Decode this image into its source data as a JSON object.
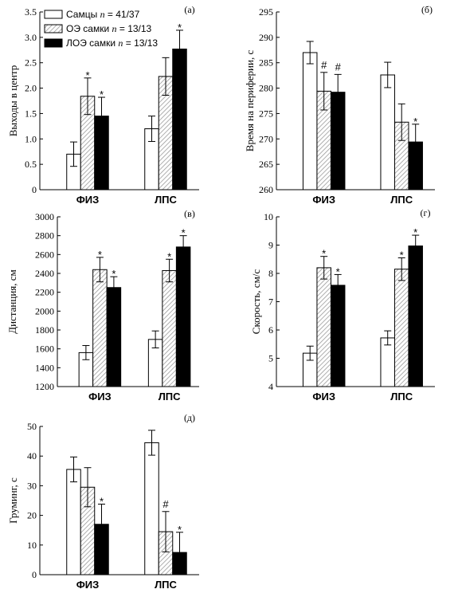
{
  "legend": {
    "items": [
      {
        "label": "Самцы",
        "n_text": "n",
        "n_value": " = 41/37",
        "fill": "white"
      },
      {
        "label": "ОЭ самки",
        "n_text": "n",
        "n_value": " = 13/13",
        "fill": "hatch"
      },
      {
        "label": "ЛОЭ самки",
        "n_text": "n",
        "n_value": " = 13/13",
        "fill": "black"
      }
    ]
  },
  "colors": {
    "bar_outline": "#000000",
    "hatch": "#9a9a9a",
    "solid": "#000000"
  },
  "chart_data": [
    {
      "type": "bar",
      "panel": "(а)",
      "ylabel": "Выходы в центр",
      "categories": [
        "ФИЗ",
        "ЛПС"
      ],
      "ylim": [
        0,
        3.5
      ],
      "yticks": [
        "0",
        "0.5",
        "1.0",
        "1.5",
        "2.0",
        "2.5",
        "3.0",
        "3.5"
      ],
      "ytick_values": [
        0,
        0.5,
        1,
        1.5,
        2,
        2.5,
        3,
        3.5
      ],
      "series": [
        {
          "values": [
            0.7,
            1.2
          ],
          "errors": [
            0.24,
            0.25
          ],
          "marks": [
            "",
            ""
          ]
        },
        {
          "values": [
            1.84,
            2.23
          ],
          "errors": [
            0.36,
            0.37
          ],
          "marks": [
            "*",
            ""
          ]
        },
        {
          "values": [
            1.45,
            2.77
          ],
          "errors": [
            0.37,
            0.37
          ],
          "marks": [
            "*",
            "*"
          ]
        }
      ]
    },
    {
      "type": "bar",
      "panel": "(б)",
      "ylabel": "Время на периферии, с",
      "categories": [
        "ФИЗ",
        "ЛПС"
      ],
      "ylim": [
        260,
        295
      ],
      "yticks": [
        "260",
        "265",
        "270",
        "275",
        "280",
        "285",
        "290",
        "295"
      ],
      "ytick_values": [
        260,
        265,
        270,
        275,
        280,
        285,
        290,
        295
      ],
      "series": [
        {
          "values": [
            287,
            282.6
          ],
          "errors": [
            2.2,
            2.5
          ],
          "marks": [
            "",
            ""
          ]
        },
        {
          "values": [
            279.4,
            273.3
          ],
          "errors": [
            3.7,
            3.6
          ],
          "marks": [
            "#",
            ""
          ]
        },
        {
          "values": [
            279.2,
            269.4
          ],
          "errors": [
            3.5,
            3.5
          ],
          "marks": [
            "#",
            "*"
          ]
        }
      ]
    },
    {
      "type": "bar",
      "panel": "(в)",
      "ylabel": "Дистанция, см",
      "categories": [
        "ФИЗ",
        "ЛПС"
      ],
      "ylim": [
        1200,
        3000
      ],
      "yticks": [
        "1200",
        "1400",
        "1600",
        "1800",
        "2000",
        "2200",
        "2400",
        "2600",
        "2800",
        "3000"
      ],
      "ytick_values": [
        1200,
        1400,
        1600,
        1800,
        2000,
        2200,
        2400,
        2600,
        2800,
        3000
      ],
      "series": [
        {
          "values": [
            1560,
            1700
          ],
          "errors": [
            75,
            90
          ],
          "marks": [
            "",
            ""
          ]
        },
        {
          "values": [
            2440,
            2430
          ],
          "errors": [
            130,
            120
          ],
          "marks": [
            "*",
            "*"
          ]
        },
        {
          "values": [
            2250,
            2680
          ],
          "errors": [
            115,
            120
          ],
          "marks": [
            "*",
            "*"
          ]
        }
      ]
    },
    {
      "type": "bar",
      "panel": "(г)",
      "ylabel": "Скорость, см/с",
      "categories": [
        "ФИЗ",
        "ЛПС"
      ],
      "ylim": [
        4,
        10
      ],
      "yticks": [
        "4",
        "5",
        "6",
        "7",
        "8",
        "9",
        "10"
      ],
      "ytick_values": [
        4,
        5,
        6,
        7,
        8,
        9,
        10
      ],
      "series": [
        {
          "values": [
            5.18,
            5.72
          ],
          "errors": [
            0.25,
            0.25
          ],
          "marks": [
            "",
            ""
          ]
        },
        {
          "values": [
            8.2,
            8.15
          ],
          "errors": [
            0.4,
            0.4
          ],
          "marks": [
            "*",
            "*"
          ]
        },
        {
          "values": [
            7.58,
            8.97
          ],
          "errors": [
            0.38,
            0.38
          ],
          "marks": [
            "*",
            "*"
          ]
        }
      ]
    },
    {
      "type": "bar",
      "panel": "(д)",
      "ylabel": "Груминг, с",
      "categories": [
        "ФИЗ",
        "ЛПС"
      ],
      "ylim": [
        0,
        50
      ],
      "yticks": [
        "0",
        "10",
        "20",
        "30",
        "40",
        "50"
      ],
      "ytick_values": [
        0,
        10,
        20,
        30,
        40,
        50
      ],
      "series": [
        {
          "values": [
            35.5,
            44.5
          ],
          "errors": [
            4.2,
            4.2
          ],
          "marks": [
            "",
            ""
          ]
        },
        {
          "values": [
            29.5,
            14.5
          ],
          "errors": [
            6.6,
            6.8
          ],
          "marks": [
            "",
            "#"
          ]
        },
        {
          "values": [
            17,
            7.5
          ],
          "errors": [
            6.8,
            6.8
          ],
          "marks": [
            "*",
            "*"
          ]
        }
      ]
    }
  ]
}
